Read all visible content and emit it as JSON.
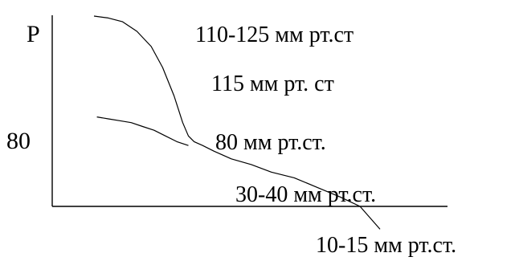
{
  "chart_data": {
    "type": "line",
    "title": "",
    "xlabel": "",
    "ylabel": "P",
    "y_tick_labels": [
      "80"
    ],
    "annotations": [
      "110-125 мм рт.ст",
      "115 мм рт. ст",
      "80 мм рт.ст.",
      "30-40 мм рт.ст.",
      "10-15 мм рт.ст."
    ],
    "grid": false,
    "legend": "none",
    "series": [
      {
        "x": [
          0.0,
          0.05,
          0.1,
          0.15,
          0.2,
          0.24,
          0.28,
          0.31,
          0.33,
          0.35,
          0.38,
          0.42,
          0.48,
          0.55,
          0.62,
          0.7,
          0.78,
          0.86,
          0.93,
          1.0
        ],
        "y": [
          1.0,
          0.99,
          0.97,
          0.92,
          0.84,
          0.73,
          0.58,
          0.44,
          0.37,
          0.34,
          0.32,
          0.29,
          0.25,
          0.22,
          0.18,
          0.15,
          0.1,
          0.05,
          0.0,
          -0.12
        ]
      },
      {
        "x": [
          0.01,
          0.05,
          0.09,
          0.13,
          0.17,
          0.21,
          0.25,
          0.29,
          0.33
        ],
        "y": [
          0.47,
          0.46,
          0.45,
          0.44,
          0.42,
          0.4,
          0.37,
          0.34,
          0.32
        ]
      }
    ]
  }
}
